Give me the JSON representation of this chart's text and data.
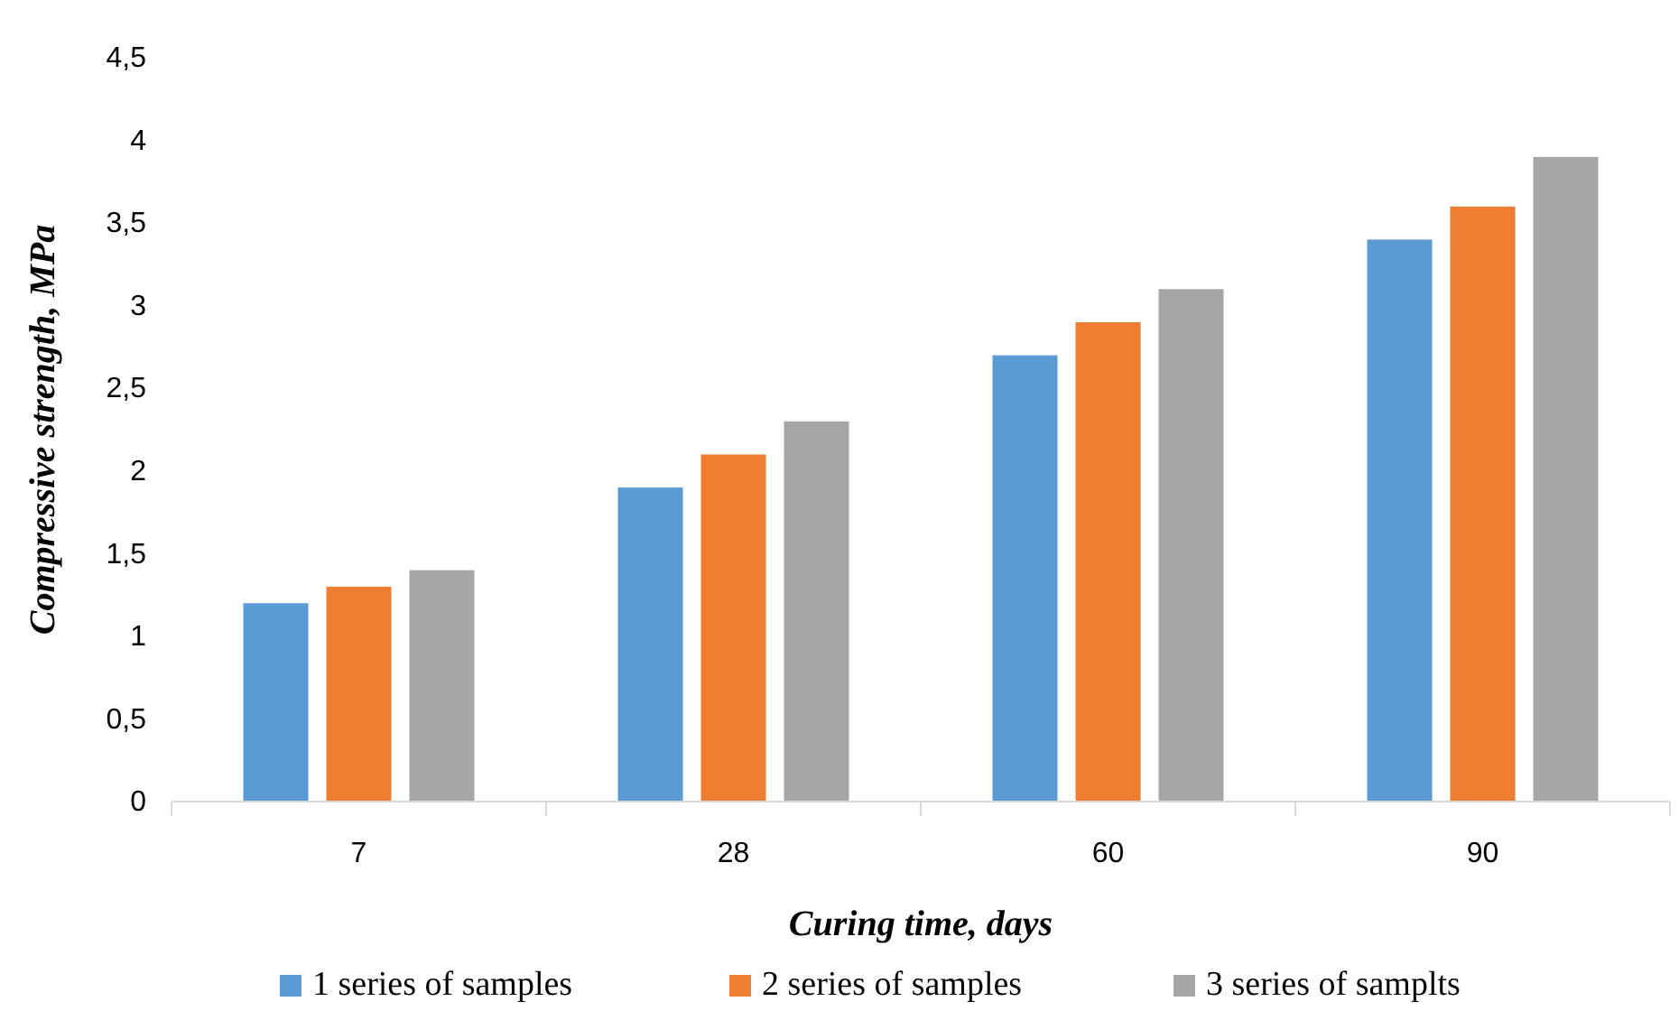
{
  "chart_data": {
    "type": "bar",
    "xlabel": "Curing time, days",
    "ylabel": "Compressive strength, MPa",
    "categories": [
      "7",
      "28",
      "60",
      "90"
    ],
    "series": [
      {
        "name": "1 series of samples",
        "color": "#5b9bd5",
        "values": [
          1.2,
          1.9,
          2.7,
          3.4
        ]
      },
      {
        "name": "2 series of samples",
        "color": "#ed7d31",
        "values": [
          1.3,
          2.1,
          2.9,
          3.6
        ]
      },
      {
        "name": "3 series of samplts",
        "color": "#a5a5a5",
        "values": [
          1.4,
          2.3,
          3.1,
          3.9
        ]
      }
    ],
    "ylim": [
      0,
      4.5
    ],
    "yticks": [
      0,
      {
        "value": 0.5,
        "label": "0,5"
      },
      1,
      {
        "value": 1.5,
        "label": "1,5"
      },
      2,
      {
        "value": 2.5,
        "label": "2,5"
      },
      3,
      {
        "value": 3.5,
        "label": "3,5"
      },
      4,
      {
        "value": 4.5,
        "label": "4,5"
      }
    ],
    "grid": false,
    "legend": "bottom"
  }
}
